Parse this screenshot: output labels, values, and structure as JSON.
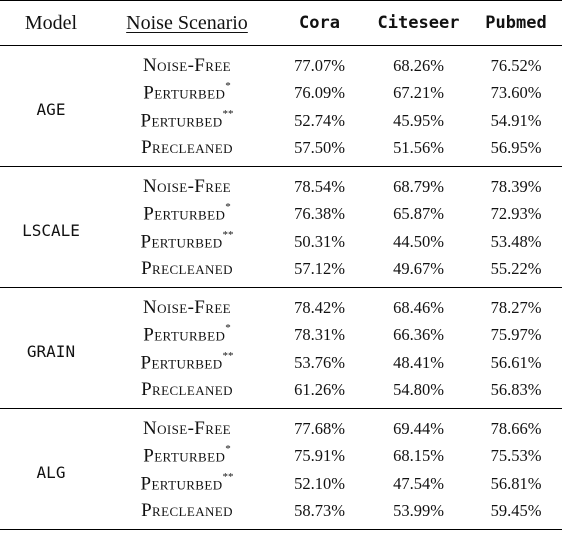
{
  "header": {
    "model": "Model",
    "scenario": "Noise Scenario",
    "datasets": [
      "Cora",
      "Citeseer",
      "Pubmed"
    ]
  },
  "groups": [
    {
      "model": "AGE",
      "rows": [
        {
          "scenario": "Noise-Free",
          "mark": "",
          "values": [
            "77.07%",
            "68.26%",
            "76.52%"
          ]
        },
        {
          "scenario": "Perturbed",
          "mark": "*",
          "values": [
            "76.09%",
            "67.21%",
            "73.60%"
          ]
        },
        {
          "scenario": "Perturbed",
          "mark": "**",
          "values": [
            "52.74%",
            "45.95%",
            "54.91%"
          ]
        },
        {
          "scenario": "Precleaned",
          "mark": "",
          "values": [
            "57.50%",
            "51.56%",
            "56.95%"
          ]
        }
      ]
    },
    {
      "model": "LSCALE",
      "rows": [
        {
          "scenario": "Noise-Free",
          "mark": "",
          "values": [
            "78.54%",
            "68.79%",
            "78.39%"
          ]
        },
        {
          "scenario": "Perturbed",
          "mark": "*",
          "values": [
            "76.38%",
            "65.87%",
            "72.93%"
          ]
        },
        {
          "scenario": "Perturbed",
          "mark": "**",
          "values": [
            "50.31%",
            "44.50%",
            "53.48%"
          ]
        },
        {
          "scenario": "Precleaned",
          "mark": "",
          "values": [
            "57.12%",
            "49.67%",
            "55.22%"
          ]
        }
      ]
    },
    {
      "model": "GRAIN",
      "rows": [
        {
          "scenario": "Noise-Free",
          "mark": "",
          "values": [
            "78.42%",
            "68.46%",
            "78.27%"
          ]
        },
        {
          "scenario": "Perturbed",
          "mark": "*",
          "values": [
            "78.31%",
            "66.36%",
            "75.97%"
          ]
        },
        {
          "scenario": "Perturbed",
          "mark": "**",
          "values": [
            "53.76%",
            "48.41%",
            "56.61%"
          ]
        },
        {
          "scenario": "Precleaned",
          "mark": "",
          "values": [
            "61.26%",
            "54.80%",
            "56.83%"
          ]
        }
      ]
    },
    {
      "model": "ALG",
      "rows": [
        {
          "scenario": "Noise-Free",
          "mark": "",
          "values": [
            "77.68%",
            "69.44%",
            "78.66%"
          ]
        },
        {
          "scenario": "Perturbed",
          "mark": "*",
          "values": [
            "75.91%",
            "68.15%",
            "75.53%"
          ]
        },
        {
          "scenario": "Perturbed",
          "mark": "**",
          "values": [
            "52.10%",
            "47.54%",
            "56.81%"
          ]
        },
        {
          "scenario": "Precleaned",
          "mark": "",
          "values": [
            "58.73%",
            "53.99%",
            "59.45%"
          ]
        }
      ]
    }
  ]
}
